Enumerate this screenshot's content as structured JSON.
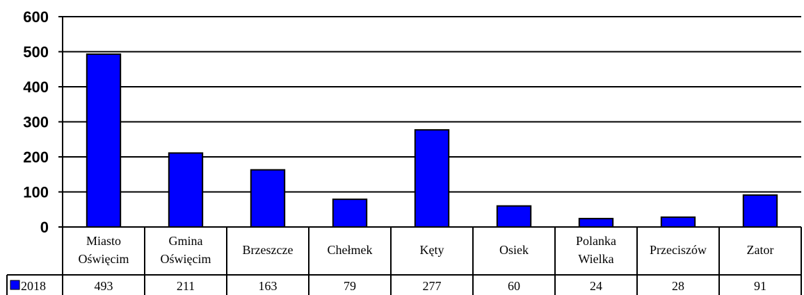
{
  "chart_data": {
    "type": "bar",
    "categories": [
      "Miasto Oświęcim",
      "Gmina Oświęcim",
      "Brzeszcze",
      "Chełmek",
      "Kęty",
      "Osiek",
      "Polanka Wielka",
      "Przeciszów",
      "Zator"
    ],
    "category_lines": [
      [
        "Miasto",
        "Oświęcim"
      ],
      [
        "Gmina",
        "Oświęcim"
      ],
      [
        "Brzeszcze"
      ],
      [
        "Chełmek"
      ],
      [
        "Kęty"
      ],
      [
        "Osiek"
      ],
      [
        "Polanka",
        "Wielka"
      ],
      [
        "Przeciszów"
      ],
      [
        "Zator"
      ]
    ],
    "series": [
      {
        "name": "2018",
        "values": [
          493,
          211,
          163,
          79,
          277,
          60,
          24,
          28,
          91
        ],
        "color": "#0000ff"
      }
    ],
    "yticks": [
      0,
      100,
      200,
      300,
      400,
      500,
      600
    ],
    "ylim": [
      0,
      600
    ],
    "grid": true,
    "legend": "data-table-left",
    "title": "",
    "xlabel": "",
    "ylabel": ""
  }
}
